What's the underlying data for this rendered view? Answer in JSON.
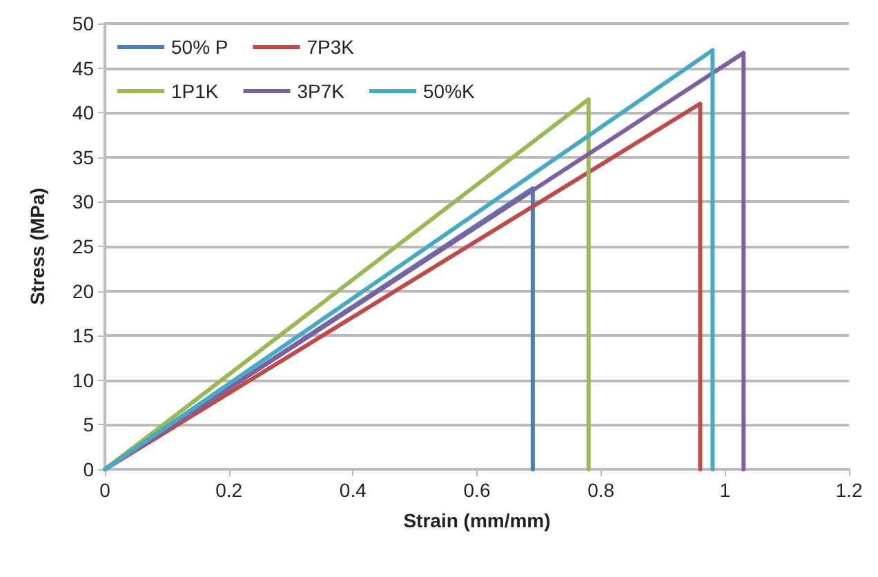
{
  "chart_data": {
    "type": "line",
    "xlabel": "Strain (mm/mm)",
    "ylabel": "Stress (MPa)",
    "xlim": [
      0,
      1.2
    ],
    "xticks": [
      0,
      0.2,
      0.4,
      0.6,
      0.8,
      1,
      1.2
    ],
    "ylim": [
      0,
      50
    ],
    "yticks": [
      0,
      5,
      10,
      15,
      20,
      25,
      30,
      35,
      40,
      45,
      50
    ],
    "grid": "y",
    "legend": "top left",
    "marker": "none",
    "series": [
      {
        "name": "50% P",
        "color": "#4a7ebb",
        "x": [
          0,
          0.69,
          0.69
        ],
        "values": [
          0,
          31.5,
          0
        ]
      },
      {
        "name": "7P3K",
        "color": "#be4b48",
        "x": [
          0,
          0.96,
          0.96
        ],
        "values": [
          0,
          41,
          0
        ]
      },
      {
        "name": "1P1K",
        "color": "#98b954",
        "x": [
          0,
          0.78,
          0.78
        ],
        "values": [
          0,
          41.5,
          0
        ]
      },
      {
        "name": "3P7K",
        "color": "#7d60a0",
        "x": [
          0,
          1.03,
          1.03
        ],
        "values": [
          0,
          46.7,
          0
        ]
      },
      {
        "name": "50%K",
        "color": "#46aac5",
        "x": [
          0,
          0.98,
          0.98
        ],
        "values": [
          0,
          47,
          0
        ]
      }
    ]
  }
}
